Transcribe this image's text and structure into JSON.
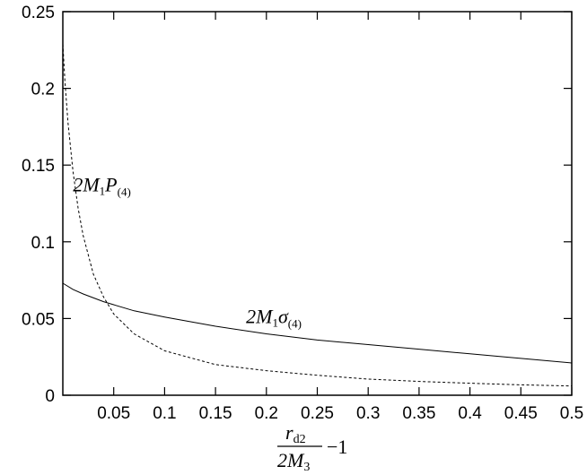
{
  "chart_data": {
    "type": "line",
    "title": "",
    "xlabel": {
      "num_main": "r",
      "num_sub": "d2",
      "den_main": "2M",
      "den_sub": "3",
      "suffix": "−1"
    },
    "ylabel": "",
    "xlim": [
      0.0,
      0.5
    ],
    "ylim": [
      0.0,
      0.25
    ],
    "x_ticks": [
      0.05,
      0.1,
      0.15,
      0.2,
      0.25,
      0.3,
      0.35,
      0.4,
      0.45,
      0.5
    ],
    "x_tick_labels": [
      "0.05",
      "0.1",
      "0.15",
      "0.2",
      "0.25",
      "0.3",
      "0.35",
      "0.4",
      "0.45",
      "0.5"
    ],
    "y_ticks": [
      0,
      0.05,
      0.1,
      0.15,
      0.2,
      0.25
    ],
    "y_tick_labels": [
      "0",
      "0.05",
      "0.1",
      "0.15",
      "0.2",
      "0.25"
    ],
    "grid": false,
    "legend": "none",
    "series": [
      {
        "style": "dashed",
        "color": "#000000",
        "x": [
          0.0,
          0.002,
          0.005,
          0.01,
          0.015,
          0.02,
          0.03,
          0.04,
          0.05,
          0.07,
          0.1,
          0.15,
          0.2,
          0.25,
          0.3,
          0.35,
          0.4,
          0.45,
          0.5
        ],
        "y": [
          0.229,
          0.205,
          0.178,
          0.146,
          0.122,
          0.104,
          0.079,
          0.064,
          0.053,
          0.04,
          0.029,
          0.02,
          0.016,
          0.013,
          0.0105,
          0.009,
          0.0078,
          0.0068,
          0.006
        ]
      },
      {
        "style": "solid",
        "color": "#000000",
        "x": [
          0.0,
          0.01,
          0.02,
          0.04,
          0.05,
          0.07,
          0.1,
          0.15,
          0.2,
          0.25,
          0.3,
          0.35,
          0.4,
          0.45,
          0.5
        ],
        "y": [
          0.073,
          0.069,
          0.066,
          0.061,
          0.059,
          0.055,
          0.051,
          0.045,
          0.04,
          0.036,
          0.033,
          0.03,
          0.027,
          0.024,
          0.021
        ]
      }
    ],
    "annotations": [
      {
        "main": "2M",
        "sub1": "1",
        "sym": "P",
        "sub2": "(4)",
        "x": 0.01,
        "y": 0.133,
        "series": 0
      },
      {
        "main": "2M",
        "sub1": "1",
        "sym": "σ",
        "sub2": "(4)",
        "x": 0.18,
        "y": 0.047,
        "series": 1
      }
    ]
  }
}
